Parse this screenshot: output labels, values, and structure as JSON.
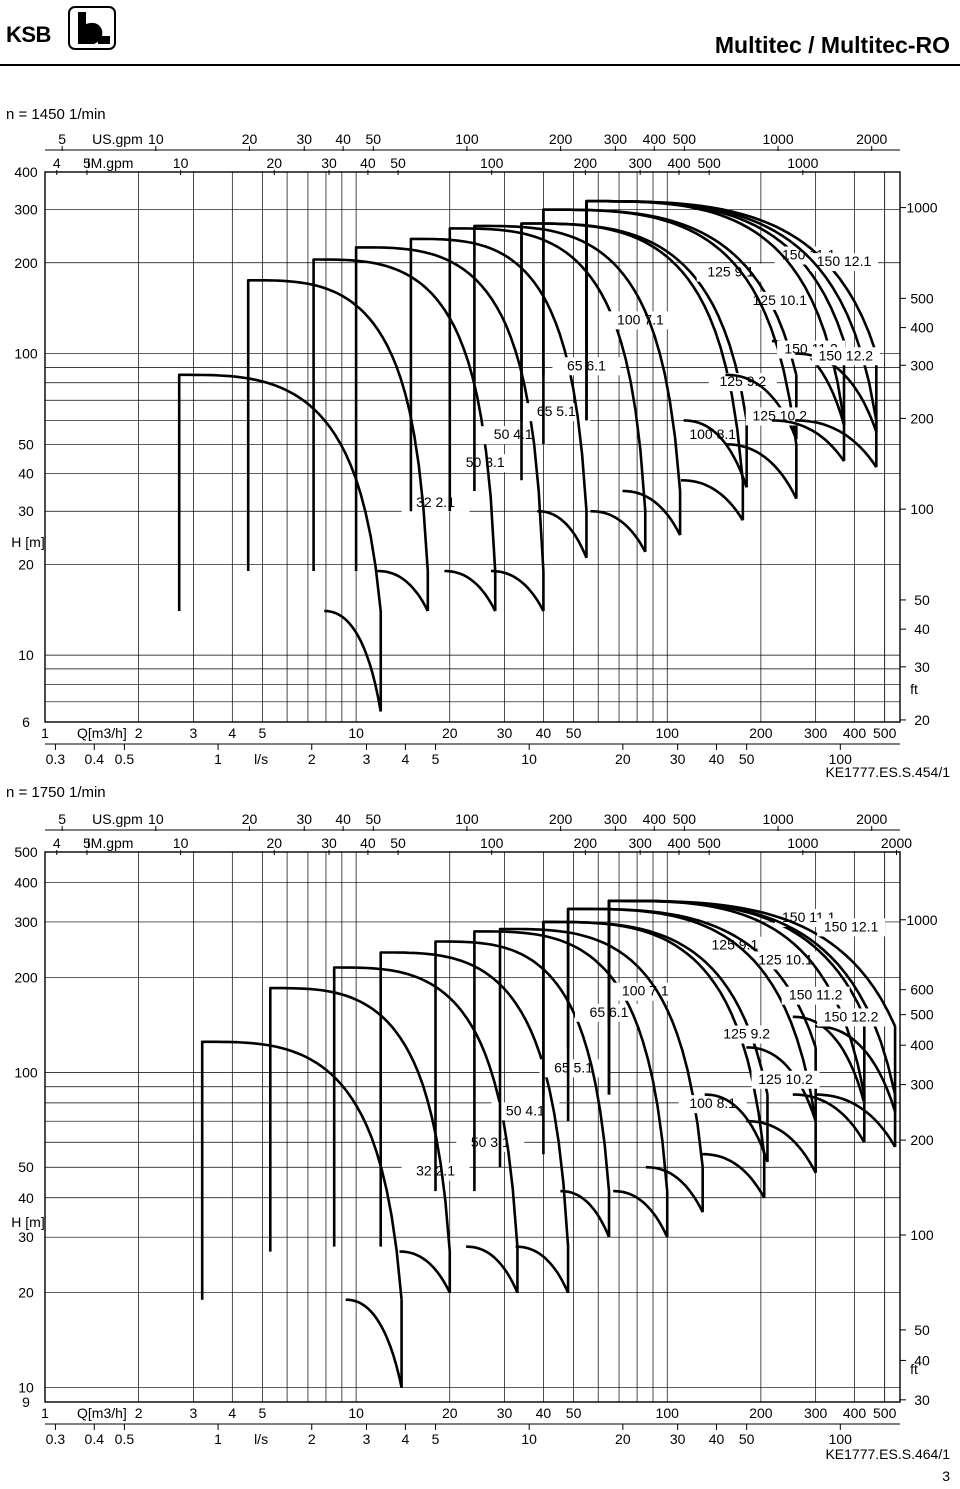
{
  "header": {
    "brand": "KSB",
    "title": "Multitec / Multitec-RO"
  },
  "page_number": "3",
  "chart_data": [
    {
      "type": "line",
      "speed_label": "n = 1450 1/min",
      "figure_ref": "KE1777.ES.S.454/1",
      "x_scale": "log",
      "xlabel": "Q[m3/h]",
      "ylabel": "H [m]",
      "right_axis_label": "ft",
      "xlim": [
        1,
        560
      ],
      "ylim": [
        6,
        400
      ],
      "grid": true,
      "x_ticks": [
        "1",
        "2",
        "3",
        "4",
        "5",
        "10",
        "20",
        "30",
        "40",
        "50",
        "100",
        "200",
        "300",
        "400",
        "500"
      ],
      "y_ticks": [
        "6",
        "10",
        "20",
        "30",
        "40",
        "50",
        "100",
        "200",
        "300",
        "400"
      ],
      "top_axes": [
        {
          "unit": "US.gpm",
          "ticks": [
            "5",
            "10",
            "20",
            "30",
            "40",
            "50",
            "100",
            "200",
            "300",
            "400",
            "500",
            "1000",
            "2000"
          ]
        },
        {
          "unit": "IM.gpm",
          "ticks": [
            "4",
            "5",
            "10",
            "20",
            "30",
            "40",
            "50",
            "100",
            "200",
            "300",
            "400",
            "500",
            "1000"
          ]
        }
      ],
      "bottom_axis": {
        "unit": "l/s",
        "ticks": [
          "0.3",
          "0.4",
          "0.5",
          "1",
          "2",
          "3",
          "4",
          "5",
          "10",
          "20",
          "30",
          "40",
          "50",
          "100"
        ]
      },
      "right_axis_ticks": [
        "20",
        "30",
        "40",
        "50",
        "100",
        "200",
        "300",
        "400",
        "500",
        "1000"
      ],
      "series": [
        {
          "name": "32 2.1",
          "qmin": 2.7,
          "qmax": 12,
          "hmax": 85,
          "hmin": 14,
          "hend": 6.5,
          "label_q": 18,
          "label_h": 31
        },
        {
          "name": "50 3.1",
          "qmin": 4.5,
          "qmax": 17,
          "hmax": 175,
          "hmin": 19,
          "hend": 14,
          "label_q": 26,
          "label_h": 42
        },
        {
          "name": "50 4.1",
          "qmin": 7.3,
          "qmax": 28,
          "hmax": 205,
          "hmin": 19,
          "hend": 14,
          "label_q": 32,
          "label_h": 52
        },
        {
          "name": "65 5.1",
          "qmin": 10,
          "qmax": 40,
          "hmax": 225,
          "hmin": 19,
          "hend": 14,
          "label_q": 44,
          "label_h": 62
        },
        {
          "name": "65 6.1",
          "qmin": 15,
          "qmax": 55,
          "hmax": 240,
          "hmin": 30,
          "hend": 21,
          "label_q": 55,
          "label_h": 88
        },
        {
          "name": "100 7.1",
          "qmin": 20,
          "qmax": 85,
          "hmax": 260,
          "hmin": 30,
          "hend": 22,
          "label_q": 82,
          "label_h": 125
        },
        {
          "name": "100 8.1",
          "qmin": 24,
          "qmax": 110,
          "hmax": 265,
          "hmin": 35,
          "hend": 25,
          "label_q": 140,
          "label_h": 52
        },
        {
          "name": "125 9.1",
          "qmin": 34,
          "qmax": 180,
          "hmax": 270,
          "hmin": 60,
          "hend": 36,
          "label_q": 160,
          "label_h": 180
        },
        {
          "name": "125 9.2",
          "qmin": 34,
          "qmax": 175,
          "hmax": 270,
          "hmin": 38,
          "hend": 28,
          "label_q": 175,
          "label_h": 78
        },
        {
          "name": "125 10.1",
          "qmin": 40,
          "qmax": 260,
          "hmax": 300,
          "hmin": 85,
          "hend": 52,
          "label_q": 230,
          "label_h": 145
        },
        {
          "name": "125 10.2",
          "qmin": 40,
          "qmax": 260,
          "hmax": 300,
          "hmin": 50,
          "hend": 33,
          "label_q": 230,
          "label_h": 60
        },
        {
          "name": "150 11.1",
          "qmin": 55,
          "qmax": 370,
          "hmax": 320,
          "hmin": 110,
          "hend": 58,
          "label_q": 285,
          "label_h": 205
        },
        {
          "name": "150 11.2",
          "qmin": 55,
          "qmax": 370,
          "hmax": 320,
          "hmin": 60,
          "hend": 44,
          "label_q": 290,
          "label_h": 100
        },
        {
          "name": "150 12.1",
          "qmin": 55,
          "qmax": 470,
          "hmax": 320,
          "hmin": 100,
          "hend": 55,
          "label_q": 370,
          "label_h": 195
        },
        {
          "name": "150 12.2",
          "qmin": 55,
          "qmax": 470,
          "hmax": 320,
          "hmin": 60,
          "hend": 42,
          "label_q": 375,
          "label_h": 95
        }
      ]
    },
    {
      "type": "line",
      "speed_label": "n = 1750 1/min",
      "figure_ref": "KE1777.ES.S.464/1",
      "x_scale": "log",
      "xlabel": "Q[m3/h]",
      "ylabel": "H [m]",
      "right_axis_label": "ft",
      "xlim": [
        1,
        560
      ],
      "ylim": [
        9,
        500
      ],
      "grid": true,
      "x_ticks": [
        "1",
        "2",
        "3",
        "4",
        "5",
        "10",
        "20",
        "30",
        "40",
        "50",
        "100",
        "200",
        "300",
        "400",
        "500"
      ],
      "y_ticks": [
        "9",
        "10",
        "20",
        "30",
        "40",
        "50",
        "100",
        "200",
        "300",
        "400",
        "500"
      ],
      "top_axes": [
        {
          "unit": "US.gpm",
          "ticks": [
            "5",
            "10",
            "20",
            "30",
            "40",
            "50",
            "100",
            "200",
            "300",
            "400",
            "500",
            "1000",
            "2000"
          ]
        },
        {
          "unit": "IM.gpm",
          "ticks": [
            "4",
            "5",
            "10",
            "20",
            "30",
            "40",
            "50",
            "100",
            "200",
            "300",
            "400",
            "500",
            "1000",
            "2000"
          ]
        }
      ],
      "bottom_axis": {
        "unit": "l/s",
        "ticks": [
          "0.3",
          "0.4",
          "0.5",
          "1",
          "2",
          "3",
          "4",
          "5",
          "10",
          "20",
          "30",
          "40",
          "50",
          "100"
        ]
      },
      "right_axis_ticks": [
        "30",
        "40",
        "50",
        "100",
        "200",
        "300",
        "400",
        "500",
        "600",
        "1000"
      ],
      "series": [
        {
          "name": "32 2.1",
          "qmin": 3.2,
          "qmax": 14,
          "hmax": 125,
          "hmin": 19,
          "hend": 10,
          "label_q": 18,
          "label_h": 47
        },
        {
          "name": "50 3.1",
          "qmin": 5.3,
          "qmax": 20,
          "hmax": 185,
          "hmin": 27,
          "hend": 20,
          "label_q": 27,
          "label_h": 58
        },
        {
          "name": "50 4.1",
          "qmin": 8.5,
          "qmax": 33,
          "hmax": 215,
          "hmin": 28,
          "hend": 20,
          "label_q": 35,
          "label_h": 73
        },
        {
          "name": "65 5.1",
          "qmin": 12,
          "qmax": 48,
          "hmax": 240,
          "hmin": 28,
          "hend": 20,
          "label_q": 50,
          "label_h": 100
        },
        {
          "name": "65 6.1",
          "qmin": 18,
          "qmax": 65,
          "hmax": 260,
          "hmin": 42,
          "hend": 30,
          "label_q": 65,
          "label_h": 150
        },
        {
          "name": "100 7.1",
          "qmin": 24,
          "qmax": 100,
          "hmax": 280,
          "hmin": 42,
          "hend": 30,
          "label_q": 85,
          "label_h": 175
        },
        {
          "name": "100 8.1",
          "qmin": 29,
          "qmax": 130,
          "hmax": 285,
          "hmin": 50,
          "hend": 36,
          "label_q": 140,
          "label_h": 77
        },
        {
          "name": "125 9.1",
          "qmin": 40,
          "qmax": 210,
          "hmax": 300,
          "hmin": 85,
          "hend": 52,
          "label_q": 165,
          "label_h": 245
        },
        {
          "name": "125 9.2",
          "qmin": 40,
          "qmax": 205,
          "hmax": 300,
          "hmin": 55,
          "hend": 40,
          "label_q": 180,
          "label_h": 128
        },
        {
          "name": "125 10.1",
          "qmin": 48,
          "qmax": 300,
          "hmax": 330,
          "hmin": 120,
          "hend": 70,
          "label_q": 240,
          "label_h": 220
        },
        {
          "name": "125 10.2",
          "qmin": 48,
          "qmax": 300,
          "hmax": 330,
          "hmin": 70,
          "hend": 48,
          "label_q": 240,
          "label_h": 92
        },
        {
          "name": "150 11.1",
          "qmin": 65,
          "qmax": 430,
          "hmax": 350,
          "hmin": 150,
          "hend": 80,
          "label_q": 285,
          "label_h": 300
        },
        {
          "name": "150 11.2",
          "qmin": 65,
          "qmax": 430,
          "hmax": 350,
          "hmin": 85,
          "hend": 60,
          "label_q": 300,
          "label_h": 170
        },
        {
          "name": "150 12.1",
          "qmin": 65,
          "qmax": 540,
          "hmax": 350,
          "hmin": 140,
          "hend": 75,
          "label_q": 390,
          "label_h": 280
        },
        {
          "name": "150 12.2",
          "qmin": 65,
          "qmax": 540,
          "hmax": 350,
          "hmin": 85,
          "hend": 58,
          "label_q": 390,
          "label_h": 145
        }
      ]
    }
  ]
}
